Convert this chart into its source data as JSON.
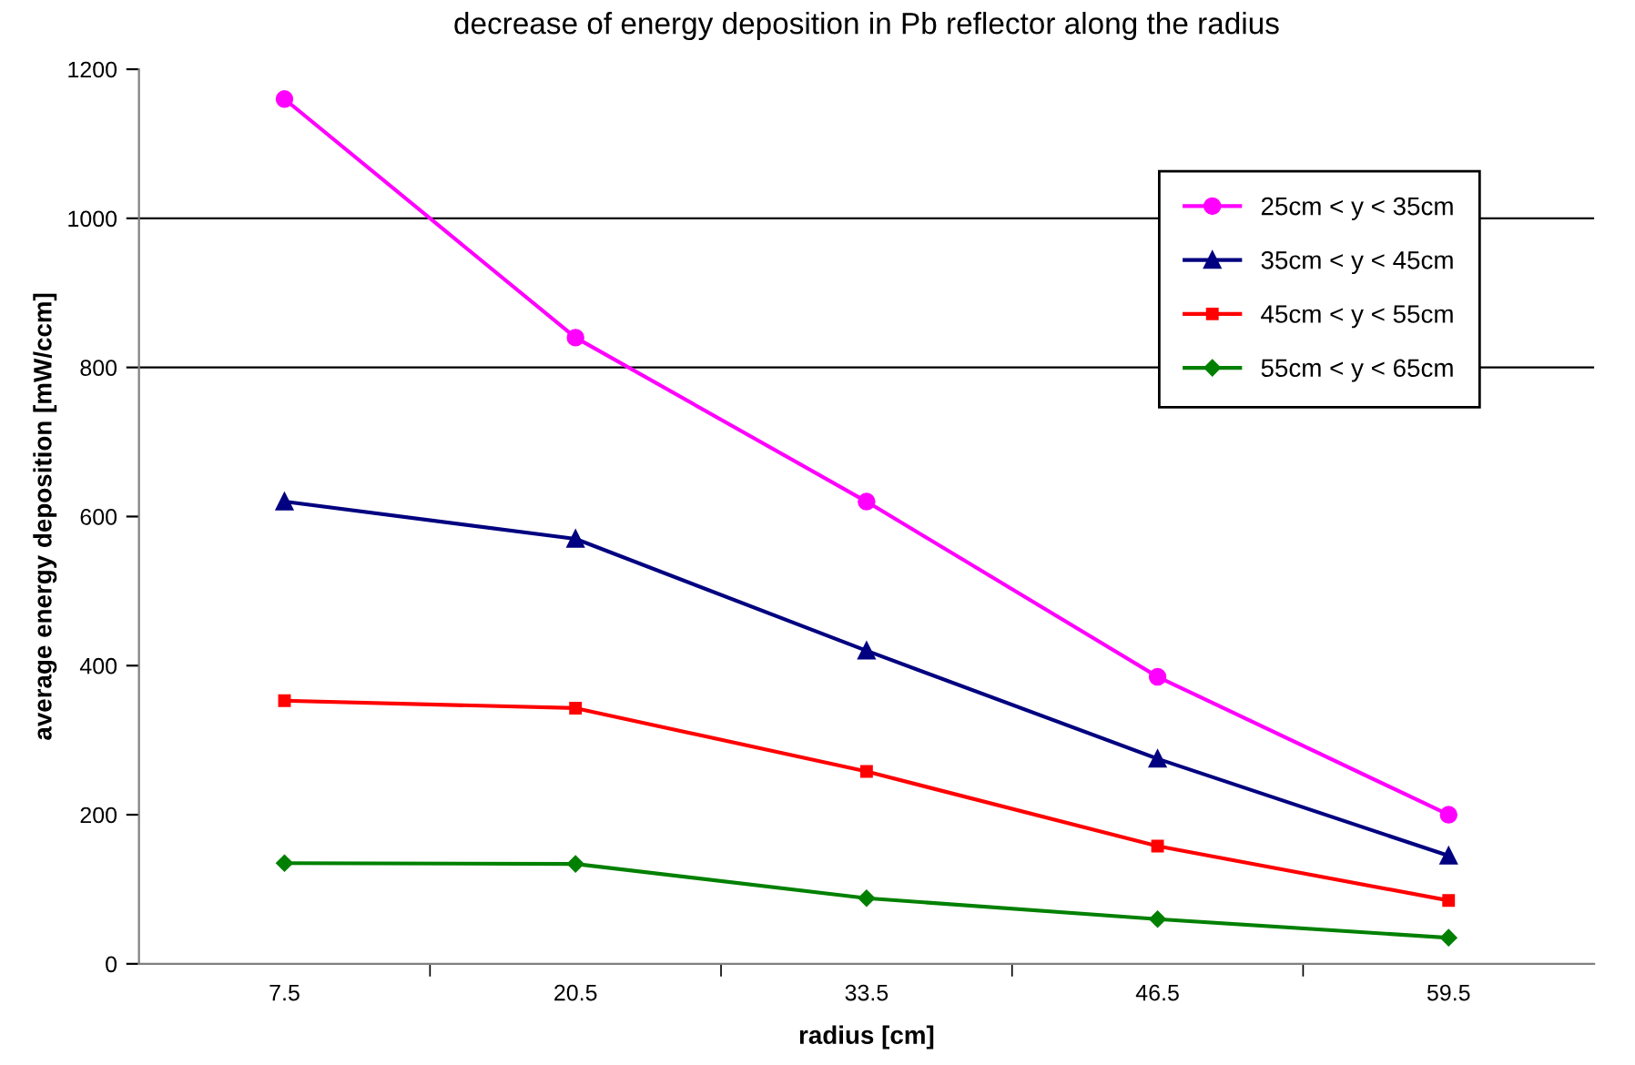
{
  "chart_data": {
    "type": "line",
    "title": "decrease of energy deposition in Pb reflector along the radius",
    "xlabel": "radius [cm]",
    "ylabel": "average energy deposition [mW/ccm]",
    "categories": [
      "7.5",
      "20.5",
      "33.5",
      "46.5",
      "59.5"
    ],
    "series": [
      {
        "name": "25cm < y < 35cm",
        "color": "#ff00ff",
        "marker": "circle",
        "values": [
          1160,
          840,
          620,
          385,
          200
        ]
      },
      {
        "name": "35cm < y < 45cm",
        "color": "#000080",
        "marker": "triangle",
        "values": [
          620,
          570,
          420,
          275,
          145
        ]
      },
      {
        "name": "45cm < y < 55cm",
        "color": "#ff0000",
        "marker": "square",
        "values": [
          353,
          343,
          258,
          158,
          85
        ]
      },
      {
        "name": "55cm < y < 65cm",
        "color": "#008000",
        "marker": "diamond",
        "values": [
          135,
          134,
          88,
          60,
          35
        ]
      }
    ],
    "ylim": [
      0,
      1200
    ],
    "yticks": [
      0,
      200,
      400,
      600,
      800,
      1000,
      1200
    ],
    "ref_lines": [
      {
        "axis": "y",
        "value": 800,
        "color": "#000000"
      },
      {
        "axis": "y",
        "value": 1000,
        "color": "#000000"
      }
    ],
    "grid": false,
    "legend": "top right",
    "line_style": "solid"
  }
}
